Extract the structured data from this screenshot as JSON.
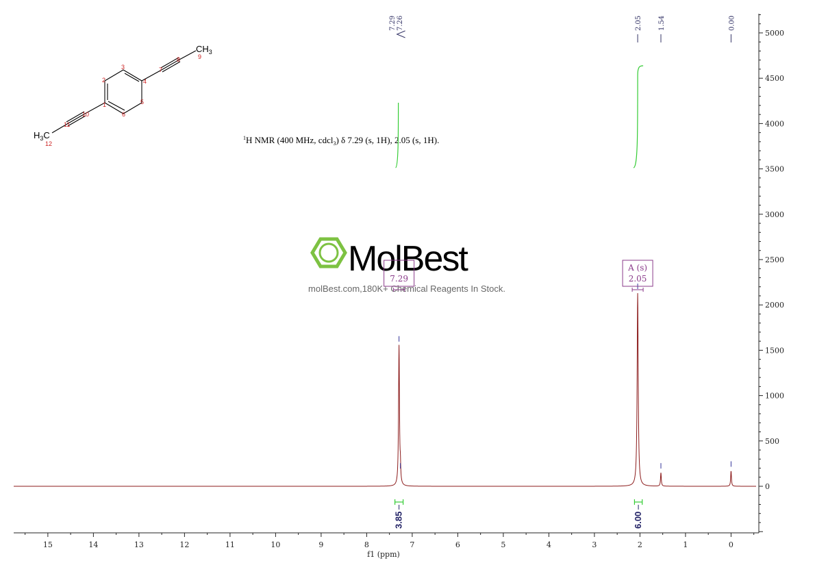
{
  "chart_data": {
    "type": "line",
    "xlabel": "f1 (ppm)",
    "xlim": [
      15.75,
      -0.55
    ],
    "ylim": [
      -520,
      5200
    ],
    "x_ticks": [
      "15",
      "14",
      "13",
      "12",
      "11",
      "10",
      "9",
      "8",
      "7",
      "6",
      "5",
      "4",
      "3",
      "2",
      "1",
      "0"
    ],
    "y_ticks": [
      "5000",
      "4500",
      "4000",
      "3500",
      "3000",
      "2500",
      "2000",
      "1500",
      "1000",
      "500",
      "0"
    ],
    "peaks": [
      {
        "ppm": 7.29,
        "height": 1550
      },
      {
        "ppm": 7.26,
        "height": 150
      },
      {
        "ppm": 2.05,
        "height": 2130
      },
      {
        "ppm": 1.54,
        "height": 150
      },
      {
        "ppm": 0.0,
        "height": 170
      }
    ],
    "peak_labels": [
      {
        "ppm": 7.29,
        "text": "7.29"
      },
      {
        "ppm": 7.26,
        "text": "7.26"
      },
      {
        "ppm": 2.05,
        "text": "2.05"
      },
      {
        "ppm": 1.54,
        "text": "1.54"
      },
      {
        "ppm": 0.0,
        "text": "0.00"
      }
    ],
    "integrals": [
      {
        "from": 7.38,
        "to": 7.2,
        "value": "3.85"
      },
      {
        "from": 2.12,
        "to": 1.95,
        "value": "6.00"
      }
    ],
    "multiplets": [
      {
        "ppm": 7.29,
        "type": "",
        "label": "7.29"
      },
      {
        "ppm": 2.05,
        "type": "A (s)",
        "label": "2.05"
      }
    ],
    "annotation": "H NMR (400 MHz, cdcl) δ 7.29 (s, 1H), 2.05 (s, 1H).",
    "annotation_sup": "1",
    "annotation_sub": "3"
  },
  "molecule": {
    "atoms": [
      {
        "id": "1",
        "label": ""
      },
      {
        "id": "2",
        "label": ""
      },
      {
        "id": "3",
        "label": ""
      },
      {
        "id": "4",
        "label": ""
      },
      {
        "id": "5",
        "label": ""
      },
      {
        "id": "6",
        "label": ""
      },
      {
        "id": "7",
        "label": ""
      },
      {
        "id": "8",
        "label": ""
      },
      {
        "id": "9",
        "label": "CH3"
      },
      {
        "id": "10",
        "label": ""
      },
      {
        "id": "11",
        "label": ""
      },
      {
        "id": "12",
        "label": "H3C"
      }
    ],
    "ch3_right": "CH",
    "ch3_right_sub": "3",
    "ch3_left": "H",
    "ch3_left_sub": "3",
    "ch3_left_c": "C"
  },
  "watermark": {
    "brand": "MolBest",
    "tagline": "molBest.com,180K+ Chemical Reagents In Stock.",
    "colors": {
      "logo": "#7dc242"
    }
  },
  "colors": {
    "spectrum": "#8b1a1a",
    "integral": "#33cc33",
    "label_lines": "#333366"
  }
}
